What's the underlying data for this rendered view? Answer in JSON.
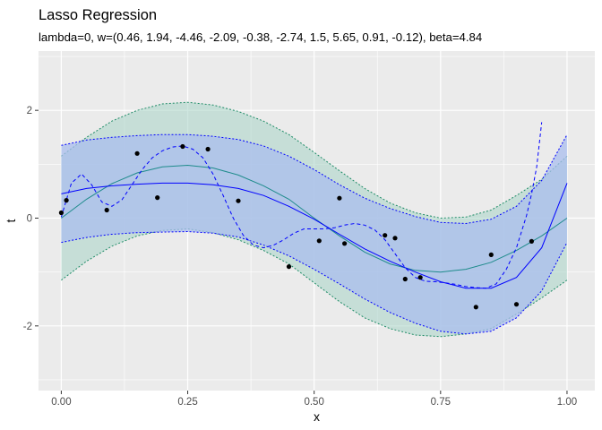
{
  "chart_data": {
    "type": "line",
    "title": "Lasso Regression",
    "subtitle": "lambda=0, w=(0.46, 1.94, -4.46, -2.09, -0.38, -2.74, 1.5, 5.65, 0.91, -0.12), beta=4.84",
    "xlabel": "x",
    "ylabel": "t",
    "xlim": [
      -0.045,
      1.055
    ],
    "ylim": [
      -3.2,
      3.1
    ],
    "x_ticks": [
      {
        "value": 0,
        "label": "0.00"
      },
      {
        "value": 0.25,
        "label": "0.25"
      },
      {
        "value": 0.5,
        "label": "0.50"
      },
      {
        "value": 0.75,
        "label": "0.75"
      },
      {
        "value": 1,
        "label": "1.00"
      }
    ],
    "y_ticks": [
      {
        "value": -2,
        "label": "-2"
      },
      {
        "value": 0,
        "label": "0"
      },
      {
        "value": 2,
        "label": "2"
      }
    ],
    "grid": true,
    "colors": {
      "panel": "#ebebeb",
      "grid": "#ffffff",
      "true_curve": "#1e8b8b",
      "true_band_fill": "#a8d3c6",
      "true_band_edge": "#1e8b66",
      "fit": "#0000ff",
      "fit_band_fill": "#a9bdee",
      "points": "#000000"
    },
    "true_band": {
      "x": [
        0,
        0.05,
        0.1,
        0.15,
        0.2,
        0.25,
        0.3,
        0.35,
        0.4,
        0.45,
        0.5,
        0.55,
        0.6,
        0.65,
        0.7,
        0.75,
        0.8,
        0.85,
        0.9,
        0.95,
        1.0
      ],
      "upper": [
        1.15,
        1.5,
        1.8,
        2.0,
        2.12,
        2.15,
        2.1,
        1.98,
        1.8,
        1.55,
        1.22,
        0.88,
        0.55,
        0.28,
        0.1,
        0.0,
        0.02,
        0.15,
        0.42,
        0.72,
        1.15
      ],
      "lower": [
        -1.15,
        -0.8,
        -0.52,
        -0.33,
        -0.23,
        -0.2,
        -0.27,
        -0.4,
        -0.6,
        -0.85,
        -1.2,
        -1.55,
        -1.85,
        -2.05,
        -2.17,
        -2.2,
        -2.15,
        -2.05,
        -1.78,
        -1.48,
        -1.15
      ]
    },
    "fit_band": {
      "x": [
        0,
        0.05,
        0.1,
        0.15,
        0.2,
        0.25,
        0.3,
        0.35,
        0.4,
        0.45,
        0.5,
        0.55,
        0.6,
        0.65,
        0.7,
        0.75,
        0.8,
        0.85,
        0.9,
        0.95,
        1.0
      ],
      "upper": [
        1.35,
        1.45,
        1.5,
        1.53,
        1.55,
        1.55,
        1.52,
        1.46,
        1.34,
        1.15,
        0.9,
        0.62,
        0.37,
        0.18,
        0.03,
        -0.08,
        -0.1,
        -0.02,
        0.22,
        0.7,
        1.55
      ],
      "lower": [
        -0.45,
        -0.36,
        -0.3,
        -0.27,
        -0.26,
        -0.25,
        -0.28,
        -0.35,
        -0.5,
        -0.7,
        -0.95,
        -1.22,
        -1.5,
        -1.75,
        -1.95,
        -2.1,
        -2.15,
        -2.1,
        -1.85,
        -1.35,
        -0.45
      ]
    },
    "series": [
      {
        "style": "solid",
        "color": "#1e8b8b",
        "x": [
          0,
          0.05,
          0.1,
          0.15,
          0.2,
          0.25,
          0.3,
          0.35,
          0.4,
          0.45,
          0.5,
          0.55,
          0.6,
          0.65,
          0.7,
          0.75,
          0.8,
          0.85,
          0.9,
          0.95,
          1.0
        ],
        "y": [
          0.0,
          0.35,
          0.64,
          0.84,
          0.95,
          0.98,
          0.93,
          0.8,
          0.6,
          0.35,
          0.0,
          -0.33,
          -0.63,
          -0.85,
          -0.97,
          -1.0,
          -0.95,
          -0.82,
          -0.6,
          -0.33,
          0.0
        ]
      },
      {
        "style": "solid",
        "color": "#0000ff",
        "x": [
          0,
          0.05,
          0.1,
          0.15,
          0.2,
          0.25,
          0.3,
          0.35,
          0.4,
          0.45,
          0.5,
          0.55,
          0.6,
          0.65,
          0.7,
          0.75,
          0.8,
          0.85,
          0.9,
          0.95,
          1.0
        ],
        "y": [
          0.45,
          0.55,
          0.6,
          0.63,
          0.65,
          0.65,
          0.62,
          0.55,
          0.42,
          0.22,
          -0.02,
          -0.3,
          -0.57,
          -0.8,
          -1.0,
          -1.18,
          -1.3,
          -1.3,
          -1.1,
          -0.55,
          0.65
        ]
      },
      {
        "style": "dashed",
        "color": "#0000ff",
        "x": [
          0,
          0.02,
          0.04,
          0.06,
          0.08,
          0.1,
          0.12,
          0.14,
          0.16,
          0.18,
          0.2,
          0.22,
          0.24,
          0.26,
          0.28,
          0.3,
          0.32,
          0.34,
          0.36,
          0.38,
          0.4,
          0.42,
          0.44,
          0.46,
          0.48,
          0.5,
          0.52,
          0.54,
          0.56,
          0.58,
          0.6,
          0.62,
          0.64,
          0.66,
          0.68,
          0.7,
          0.72,
          0.74,
          0.76,
          0.78,
          0.8,
          0.82,
          0.84,
          0.86,
          0.88,
          0.9,
          0.92,
          0.93,
          0.94,
          0.95
        ],
        "y": [
          0.02,
          0.65,
          0.82,
          0.62,
          0.3,
          0.22,
          0.34,
          0.62,
          0.9,
          1.12,
          1.25,
          1.32,
          1.34,
          1.28,
          1.12,
          0.82,
          0.42,
          0.0,
          -0.32,
          -0.5,
          -0.55,
          -0.5,
          -0.4,
          -0.28,
          -0.2,
          -0.2,
          -0.2,
          -0.18,
          -0.13,
          -0.1,
          -0.13,
          -0.22,
          -0.4,
          -0.66,
          -0.92,
          -1.1,
          -1.17,
          -1.18,
          -1.2,
          -1.23,
          -1.27,
          -1.29,
          -1.3,
          -1.22,
          -0.95,
          -0.55,
          0.05,
          0.45,
          0.95,
          1.78
        ]
      }
    ],
    "points": {
      "x": [
        0.0,
        0.01,
        0.09,
        0.15,
        0.19,
        0.24,
        0.29,
        0.35,
        0.45,
        0.51,
        0.55,
        0.56,
        0.64,
        0.66,
        0.68,
        0.71,
        0.82,
        0.85,
        0.9,
        0.93
      ],
      "y": [
        0.1,
        0.33,
        0.15,
        1.2,
        0.38,
        1.33,
        1.28,
        0.32,
        -0.9,
        -0.42,
        0.37,
        -0.47,
        -0.32,
        -0.37,
        -1.13,
        -1.1,
        -1.65,
        -0.68,
        -1.6,
        -0.43
      ]
    }
  }
}
